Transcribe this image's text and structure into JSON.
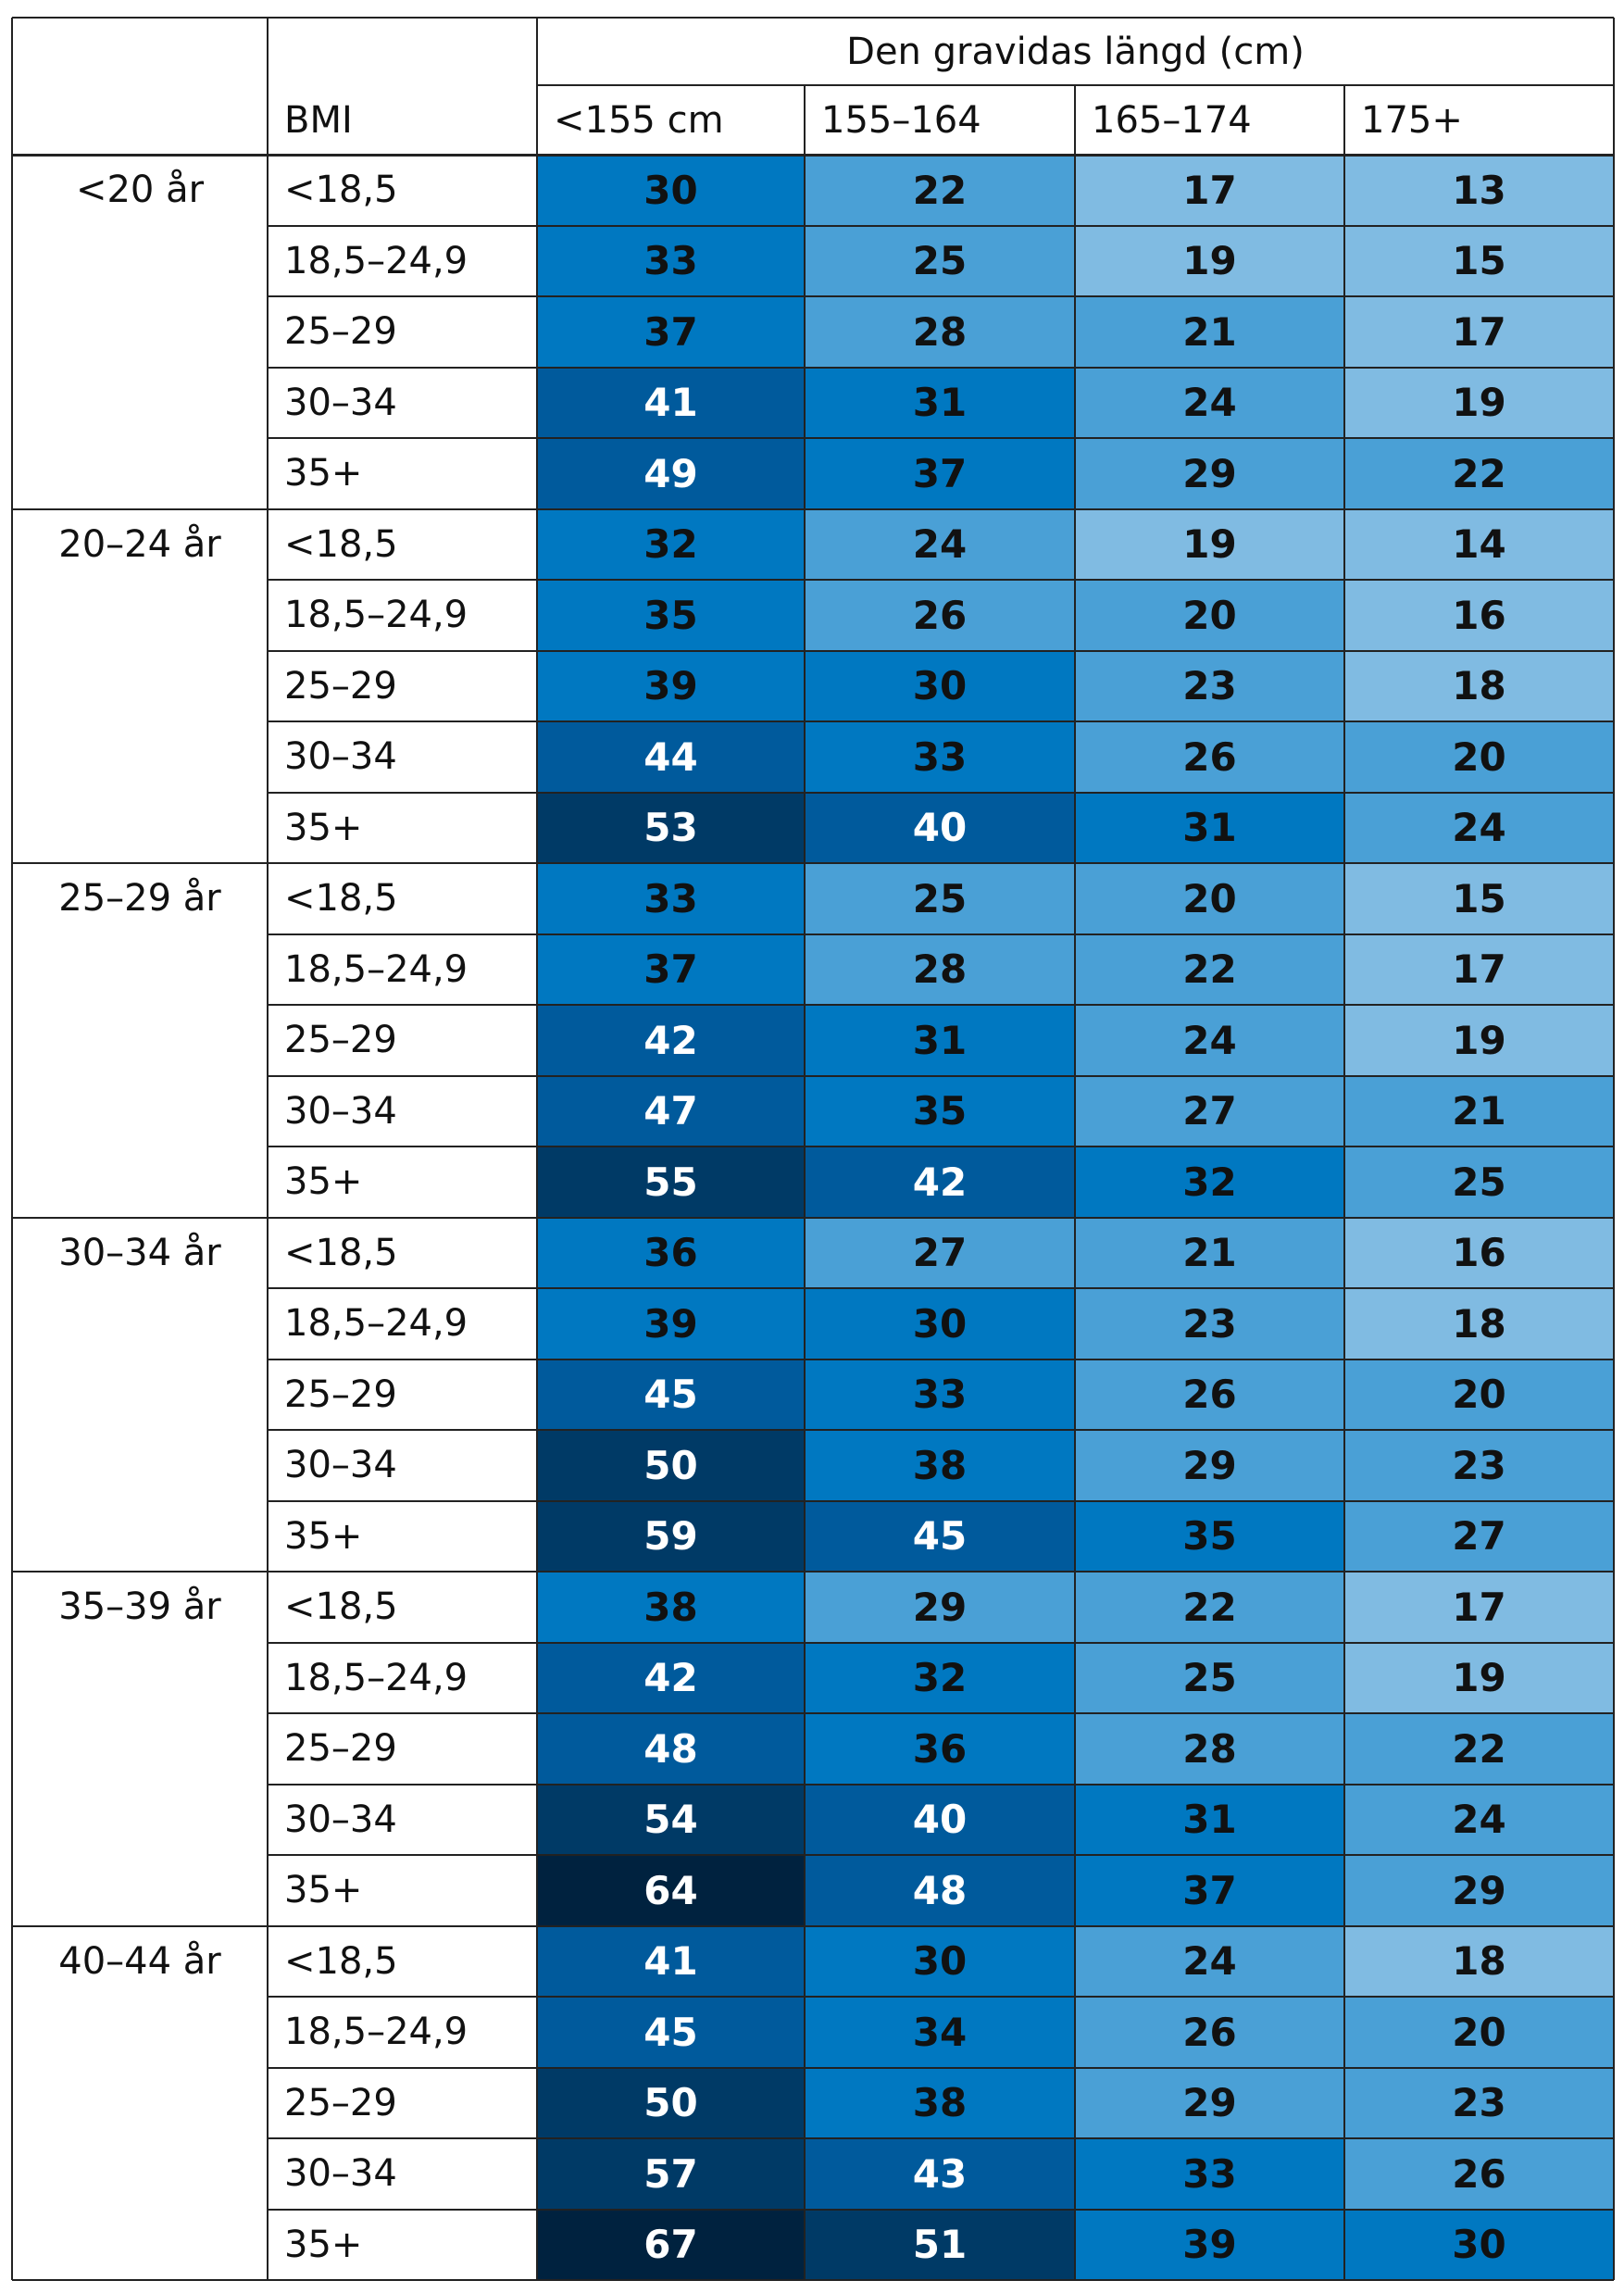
{
  "header": {
    "group_title": "Den gravidas längd (cm)",
    "bmi_label": "BMI",
    "columns": [
      "<155 cm",
      "155–164",
      "165–174",
      "175+"
    ]
  },
  "bmi_categories": [
    "<18,5",
    "18,5–24,9",
    "25–29",
    "30–34",
    "35+"
  ],
  "groups": [
    {
      "age": "<20 år",
      "rows": [
        [
          30,
          22,
          17,
          13
        ],
        [
          33,
          25,
          19,
          15
        ],
        [
          37,
          28,
          21,
          17
        ],
        [
          41,
          31,
          24,
          19
        ],
        [
          49,
          37,
          29,
          22
        ]
      ]
    },
    {
      "age": "20–24 år",
      "rows": [
        [
          32,
          24,
          19,
          14
        ],
        [
          35,
          26,
          20,
          16
        ],
        [
          39,
          30,
          23,
          18
        ],
        [
          44,
          33,
          26,
          20
        ],
        [
          53,
          40,
          31,
          24
        ]
      ]
    },
    {
      "age": "25–29 år",
      "rows": [
        [
          33,
          25,
          20,
          15
        ],
        [
          37,
          28,
          22,
          17
        ],
        [
          42,
          31,
          24,
          19
        ],
        [
          47,
          35,
          27,
          21
        ],
        [
          55,
          42,
          32,
          25
        ]
      ]
    },
    {
      "age": "30–34 år",
      "rows": [
        [
          36,
          27,
          21,
          16
        ],
        [
          39,
          30,
          23,
          18
        ],
        [
          45,
          33,
          26,
          20
        ],
        [
          50,
          38,
          29,
          23
        ],
        [
          59,
          45,
          35,
          27
        ]
      ]
    },
    {
      "age": "35–39 år",
      "rows": [
        [
          38,
          29,
          22,
          17
        ],
        [
          42,
          32,
          25,
          19
        ],
        [
          48,
          36,
          28,
          22
        ],
        [
          54,
          40,
          31,
          24
        ],
        [
          64,
          48,
          37,
          29
        ]
      ]
    },
    {
      "age": "40–44 år",
      "rows": [
        [
          41,
          30,
          24,
          18
        ],
        [
          45,
          34,
          26,
          20
        ],
        [
          50,
          38,
          29,
          23
        ],
        [
          57,
          43,
          33,
          26
        ],
        [
          67,
          51,
          39,
          30
        ]
      ]
    }
  ]
}
